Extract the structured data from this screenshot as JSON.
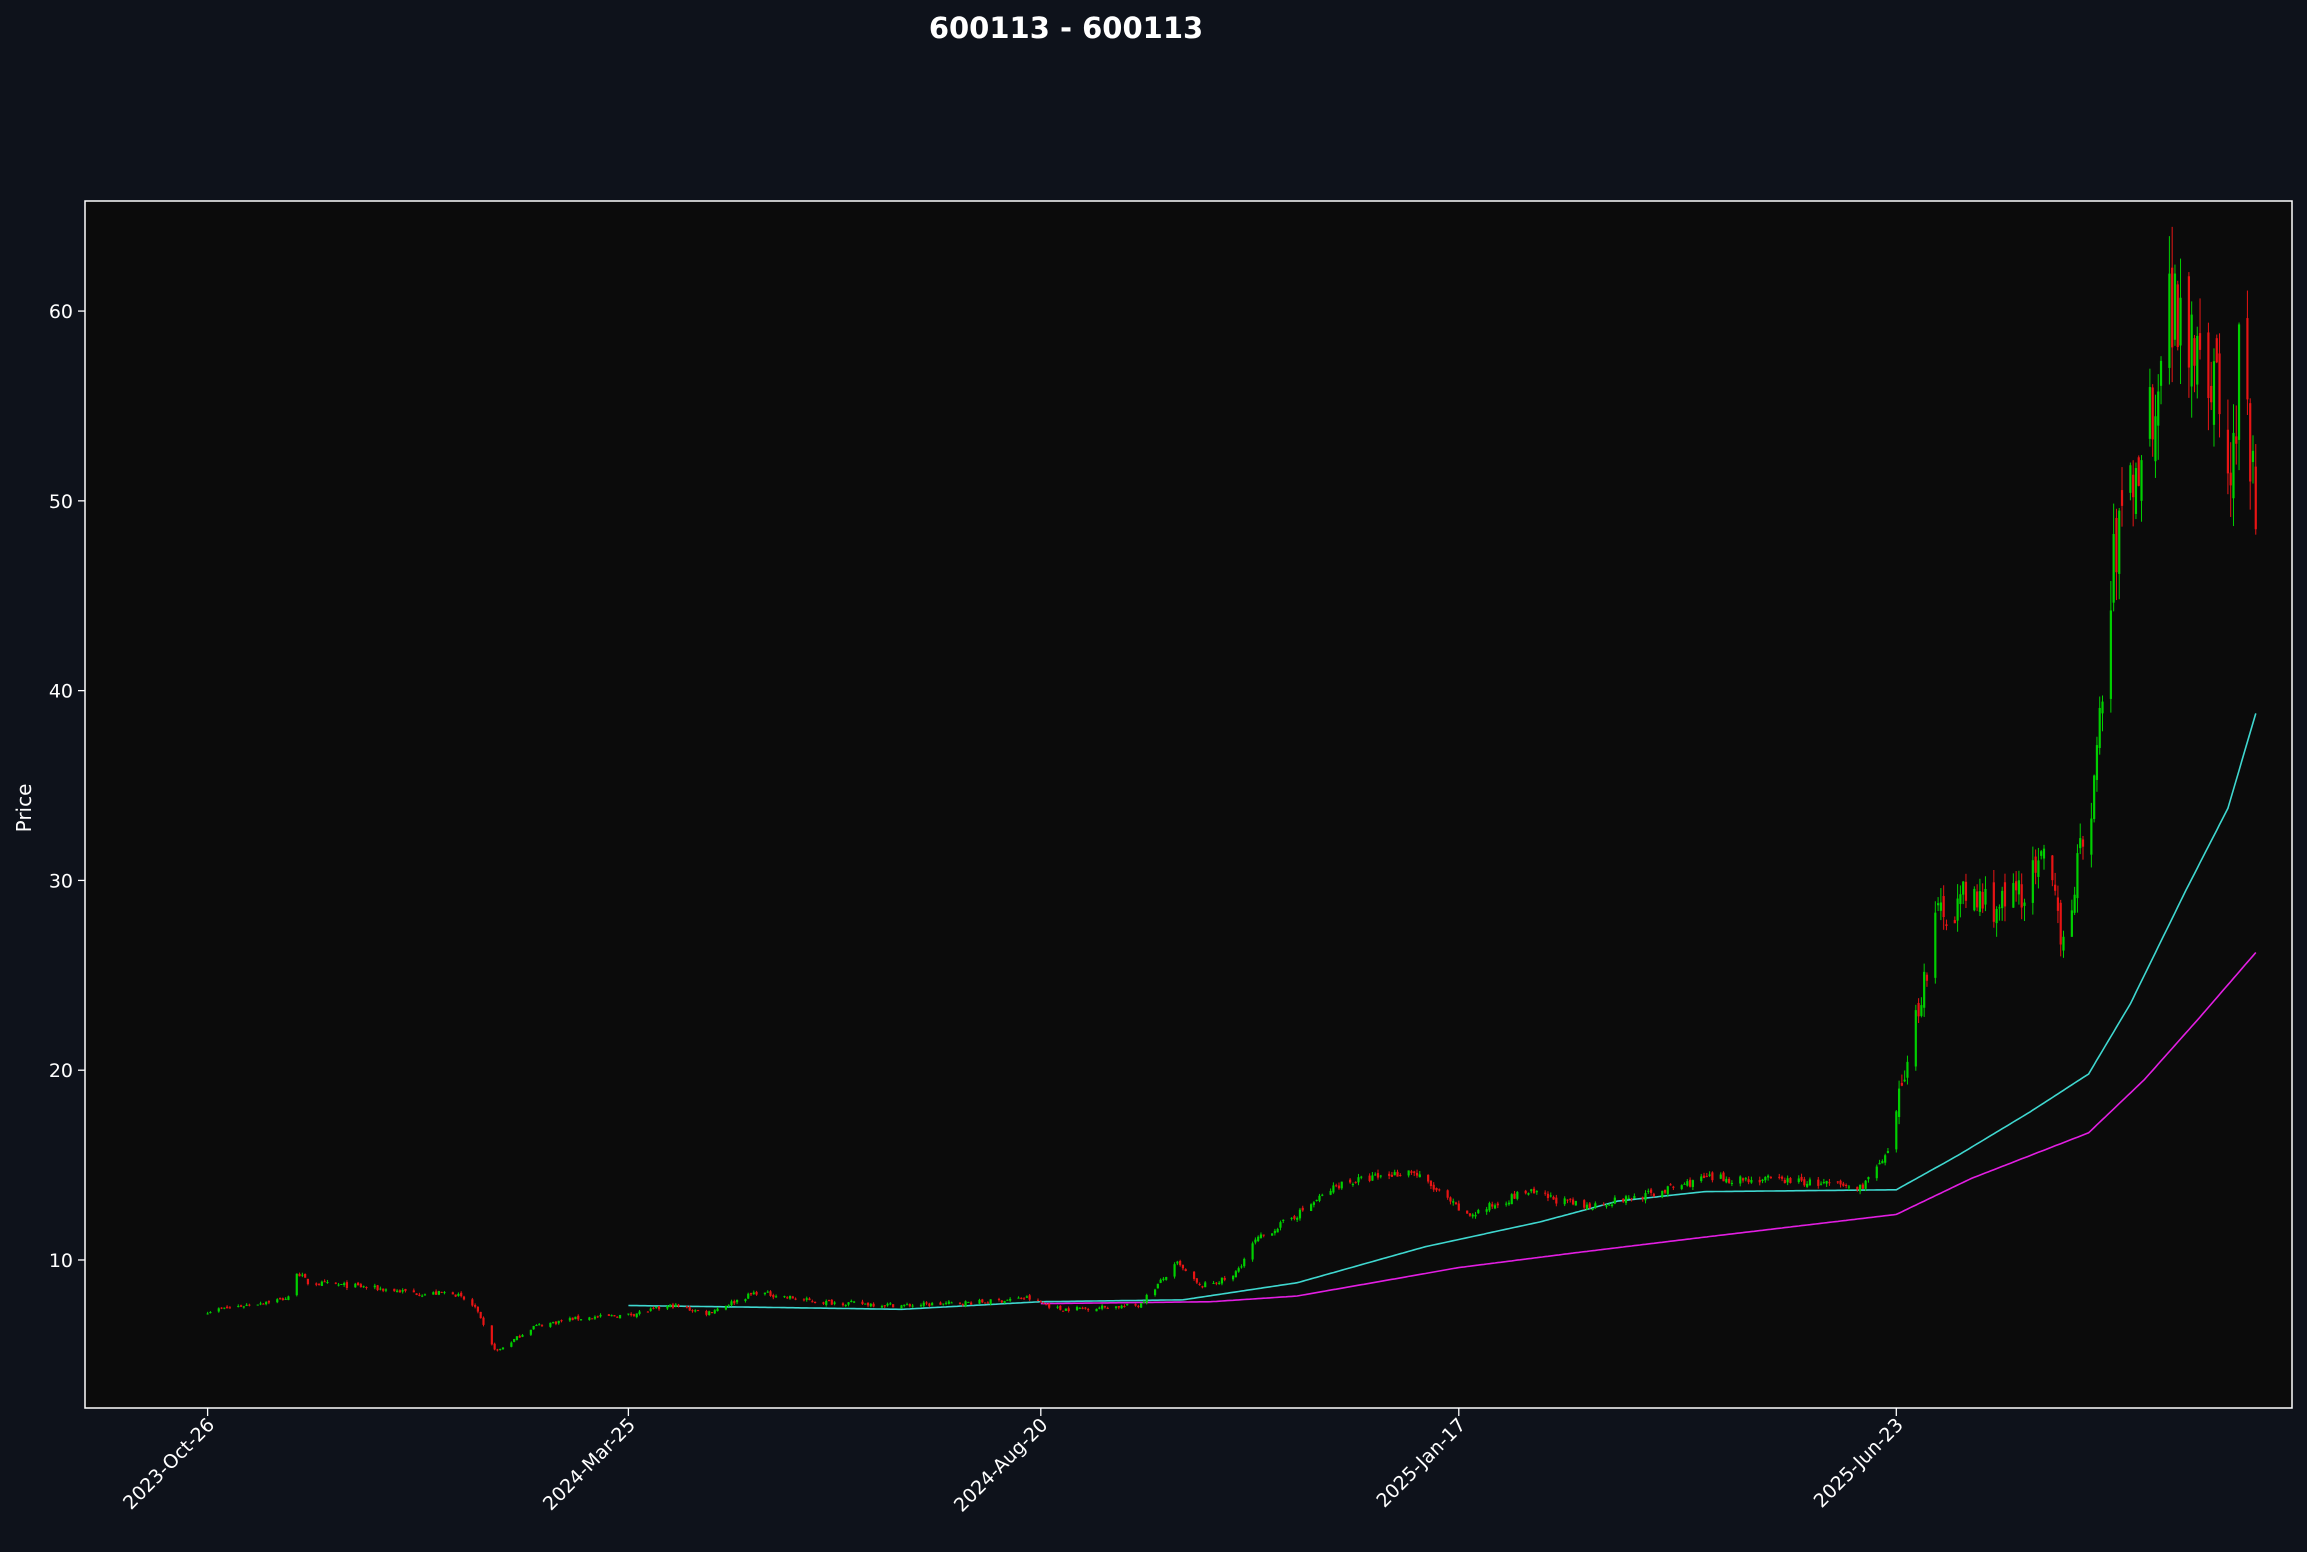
{
  "chart_data": {
    "type": "candlestick",
    "title": "600113 - 600113",
    "xlabel": "",
    "ylabel": "Price",
    "ylim": [
      2.2,
      65.8
    ],
    "yticks": [
      10,
      20,
      30,
      40,
      50,
      60
    ],
    "x_range": [
      "2023-09-12",
      "2025-11-12"
    ],
    "xticks": [
      "2023-Oct-26",
      "2024-Mar-25",
      "2024-Aug-20",
      "2025-Jan-17",
      "2025-Jun-23"
    ],
    "xtick_extra_date": "2025-11-18",
    "grid": false,
    "legend": "none",
    "candles": {
      "start": "2023-10-26",
      "end": "2025-10-30",
      "trading_days_only": true,
      "close_anchors": [
        [
          "2023-10-26",
          7.3
        ],
        [
          "2023-11-08",
          7.6
        ],
        [
          "2023-11-20",
          7.9
        ],
        [
          "2023-11-24",
          8.0
        ],
        [
          "2023-11-27",
          9.4
        ],
        [
          "2023-12-01",
          8.8
        ],
        [
          "2023-12-20",
          8.6
        ],
        [
          "2024-01-12",
          8.2
        ],
        [
          "2024-01-22",
          8.3
        ],
        [
          "2024-01-30",
          7.5
        ],
        [
          "2024-02-05",
          5.5
        ],
        [
          "2024-02-07",
          5.2
        ],
        [
          "2024-02-20",
          6.5
        ],
        [
          "2024-03-05",
          6.9
        ],
        [
          "2024-03-25",
          7.1
        ],
        [
          "2024-04-10",
          7.6
        ],
        [
          "2024-04-22",
          7.2
        ],
        [
          "2024-05-10",
          8.3
        ],
        [
          "2024-05-31",
          7.8
        ],
        [
          "2024-07-02",
          7.6
        ],
        [
          "2024-08-01",
          7.8
        ],
        [
          "2024-08-15",
          8.0
        ],
        [
          "2024-08-27",
          7.4
        ],
        [
          "2024-09-24",
          7.6
        ],
        [
          "2024-10-08",
          9.8
        ],
        [
          "2024-10-16",
          8.6
        ],
        [
          "2024-10-28",
          9.1
        ],
        [
          "2024-11-05",
          11.0
        ],
        [
          "2024-11-20",
          12.4
        ],
        [
          "2024-12-05",
          14.0
        ],
        [
          "2024-12-31",
          14.7
        ],
        [
          "2025-01-06",
          14.0
        ],
        [
          "2025-01-20",
          12.3
        ],
        [
          "2025-02-10",
          13.6
        ],
        [
          "2025-03-03",
          12.8
        ],
        [
          "2025-03-28",
          13.5
        ],
        [
          "2025-04-15",
          14.3
        ],
        [
          "2025-05-15",
          14.2
        ],
        [
          "2025-06-10",
          13.8
        ],
        [
          "2025-06-20",
          15.5
        ],
        [
          "2025-06-26",
          20.0
        ],
        [
          "2025-07-08",
          28.2
        ],
        [
          "2025-07-18",
          29.1
        ],
        [
          "2025-08-01",
          28.6
        ],
        [
          "2025-08-15",
          30.8
        ],
        [
          "2025-08-22",
          27.0
        ],
        [
          "2025-09-02",
          35.0
        ],
        [
          "2025-09-10",
          48.0
        ],
        [
          "2025-09-22",
          54.5
        ],
        [
          "2025-09-29",
          60.5
        ],
        [
          "2025-10-10",
          59.0
        ],
        [
          "2025-10-17",
          55.0
        ],
        [
          "2025-10-21",
          50.5
        ],
        [
          "2025-10-24",
          57.0
        ],
        [
          "2025-10-28",
          52.0
        ],
        [
          "2025-10-30",
          49.6
        ]
      ]
    },
    "moving_averages": [
      {
        "color": "#3fd8d0",
        "start": "2024-03-25",
        "values": [
          [
            "2024-03-25",
            7.6
          ],
          [
            "2024-05-15",
            7.5
          ],
          [
            "2024-07-01",
            7.4
          ],
          [
            "2024-08-20",
            7.8
          ],
          [
            "2024-10-10",
            7.9
          ],
          [
            "2024-11-20",
            8.8
          ],
          [
            "2025-01-05",
            10.7
          ],
          [
            "2025-02-15",
            12.0
          ],
          [
            "2025-03-15",
            13.1
          ],
          [
            "2025-04-15",
            13.6
          ],
          [
            "2025-06-23",
            13.7
          ],
          [
            "2025-07-15",
            15.5
          ],
          [
            "2025-08-10",
            17.8
          ],
          [
            "2025-08-31",
            19.8
          ],
          [
            "2025-09-15",
            23.5
          ],
          [
            "2025-10-05",
            29.5
          ],
          [
            "2025-10-20",
            33.8
          ],
          [
            "2025-10-30",
            38.8
          ]
        ]
      },
      {
        "color": "#e31ee3",
        "start": "2024-08-20",
        "values": [
          [
            "2024-08-20",
            7.7
          ],
          [
            "2024-10-20",
            7.8
          ],
          [
            "2024-11-20",
            8.1
          ],
          [
            "2025-01-17",
            9.6
          ],
          [
            "2025-03-01",
            10.4
          ],
          [
            "2025-04-15",
            11.2
          ],
          [
            "2025-05-31",
            12.0
          ],
          [
            "2025-06-23",
            12.4
          ],
          [
            "2025-07-20",
            14.3
          ],
          [
            "2025-08-10",
            15.5
          ],
          [
            "2025-08-31",
            16.7
          ],
          [
            "2025-09-20",
            19.5
          ],
          [
            "2025-10-10",
            22.8
          ],
          [
            "2025-10-30",
            26.2
          ]
        ]
      }
    ],
    "colors": {
      "up": "#00d000",
      "down": "#e81414",
      "figure_background": "#0e121b",
      "plot_background": "#0b0b0b",
      "axes": "#ffffff",
      "text": "#ffffff"
    }
  }
}
